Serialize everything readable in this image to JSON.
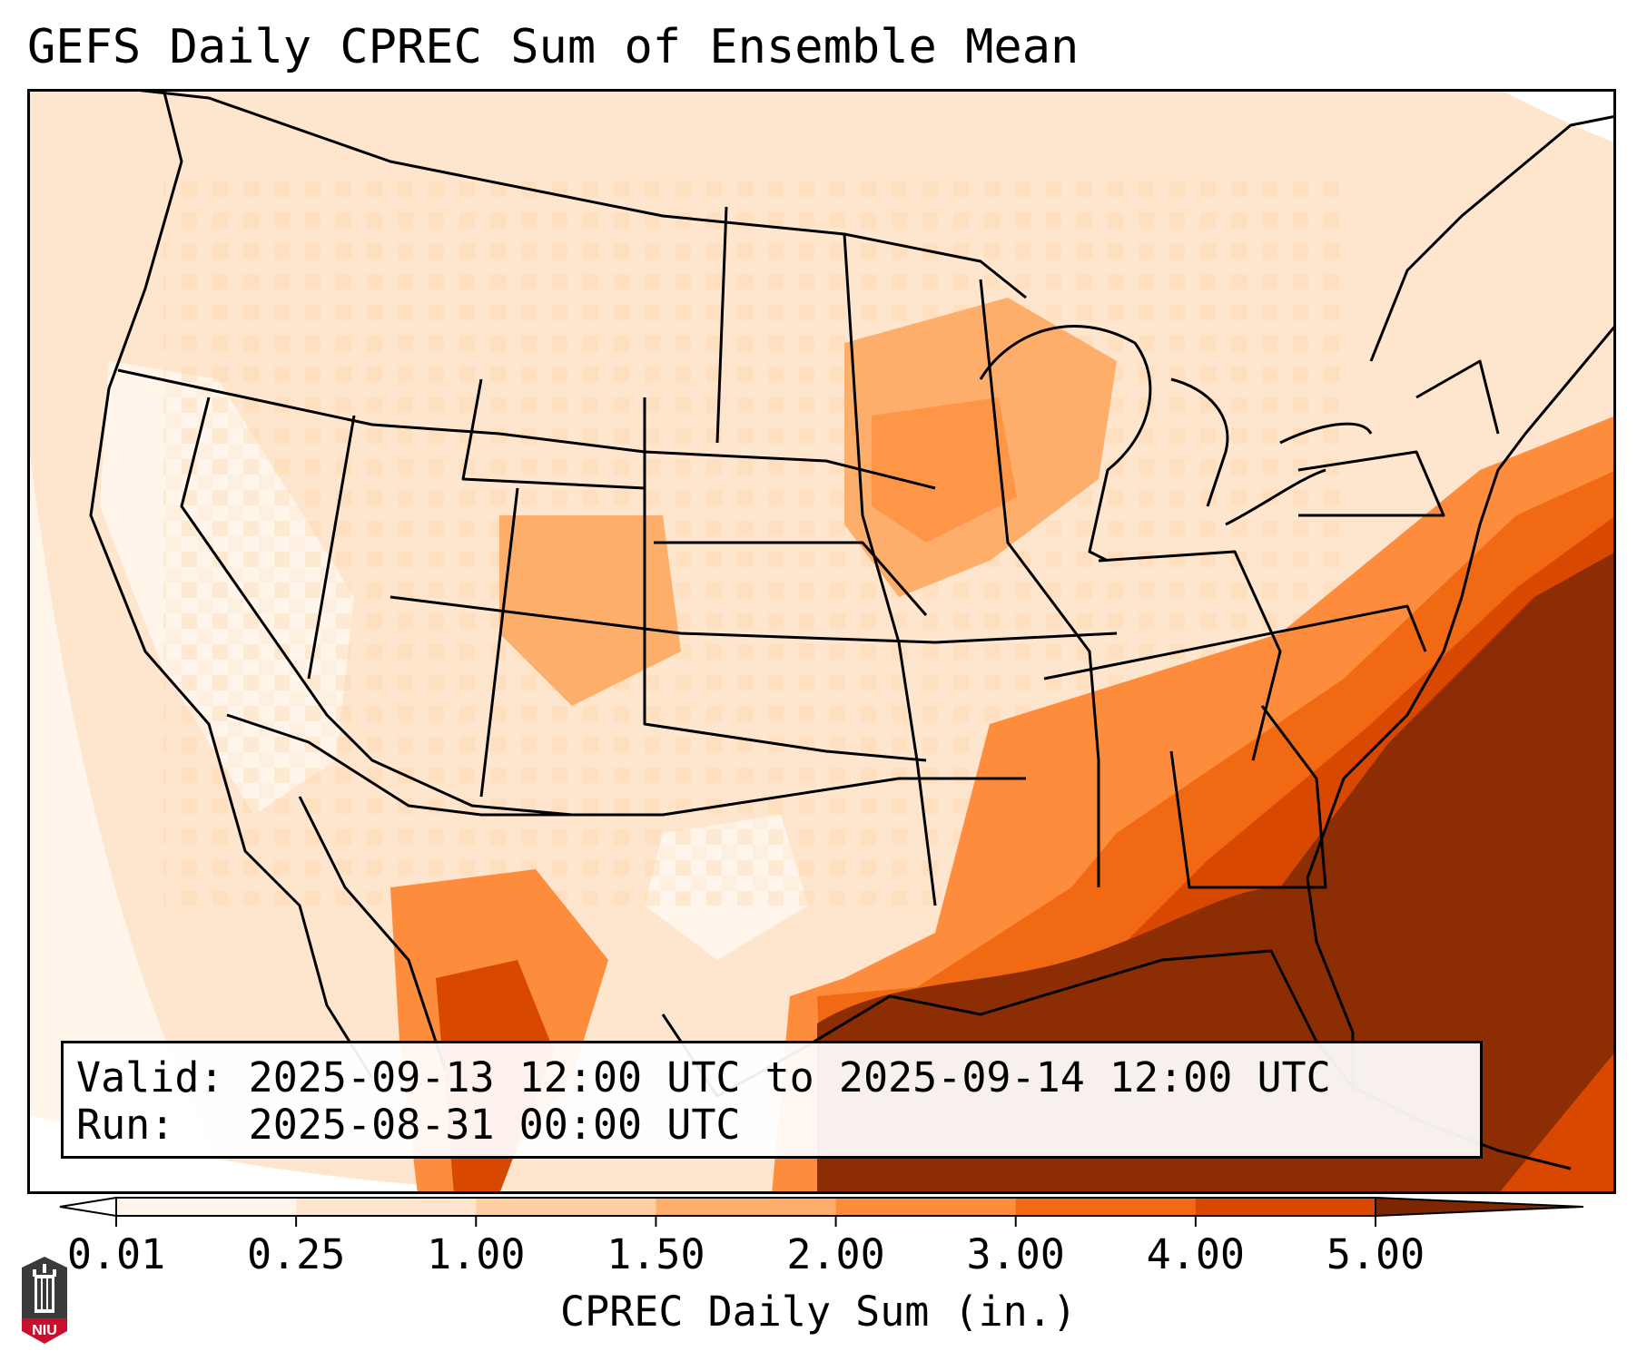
{
  "title": "GEFS Daily CPREC Sum of Ensemble Mean",
  "info": {
    "valid_label": "Valid:",
    "valid_value": "2025-09-13 12:00 UTC to 2025-09-14 12:00 UTC",
    "run_label": "Run:",
    "run_value": "2025-08-31 00:00 UTC"
  },
  "colorbar": {
    "label": "CPREC Daily Sum (in.)",
    "ticks": [
      "0.01",
      "0.25",
      "1.00",
      "1.50",
      "2.00",
      "3.00",
      "4.00",
      "5.00"
    ],
    "colors": [
      "#fff5eb",
      "#fee6ce",
      "#fdd0a2",
      "#fdae6b",
      "#fd8d3c",
      "#f16913",
      "#d94801",
      "#8c2d04"
    ],
    "under_color": "#ffffff",
    "over_color": "#7f2704"
  },
  "logo": {
    "text": "NIU",
    "color": "#c8102e"
  },
  "map": {
    "region": "CONUS",
    "projection": "lambert-conformal"
  }
}
